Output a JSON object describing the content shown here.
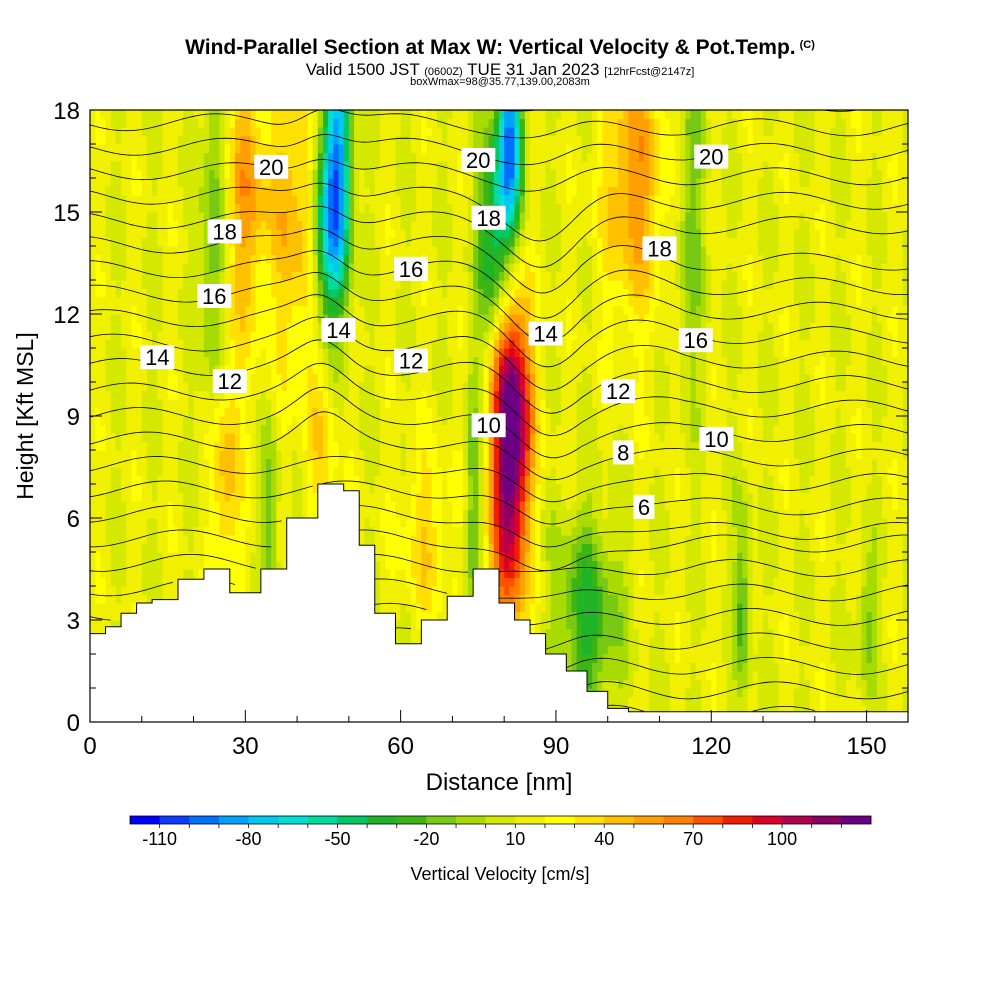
{
  "chart_data": {
    "type": "heatmap",
    "title": "Wind-Parallel Section at Max W: Vertical Velocity & Pot.Temp.",
    "title_mark": "(C)",
    "subtitle_parts": [
      "Valid 1500 JST",
      "(0600Z)",
      "TUE 31 Jan 2023",
      "[12hrFcst@2147z]"
    ],
    "subtitle2": "boxWmax=98@35.77,139.00,2083m",
    "xlabel": "Distance [nm]",
    "ylabel": "Height [Kft MSL]",
    "xlim": [
      0,
      158
    ],
    "ylim": [
      0,
      18
    ],
    "x_ticks": [
      0,
      30,
      60,
      90,
      120,
      150
    ],
    "y_ticks": [
      0,
      3,
      6,
      9,
      12,
      15,
      18
    ],
    "colorbar": {
      "label": "Vertical Velocity [cm/s]",
      "tick_labels": [
        "-110",
        "-80",
        "-50",
        "-20",
        "10",
        "40",
        "70",
        "100"
      ],
      "levels": [
        -110,
        -100,
        -90,
        -80,
        -70,
        -60,
        -50,
        -40,
        -30,
        -20,
        -10,
        0,
        10,
        20,
        30,
        40,
        50,
        60,
        70,
        80,
        90,
        100,
        110,
        120
      ],
      "colors": [
        "#0000ff",
        "#0a3cff",
        "#0070ff",
        "#00a0ff",
        "#00c8f0",
        "#00e0d8",
        "#00dca0",
        "#00c864",
        "#20b428",
        "#3cb414",
        "#78c814",
        "#a8dc00",
        "#d4e800",
        "#f0f000",
        "#ffff00",
        "#ffe000",
        "#ffc000",
        "#ffa000",
        "#ff8000",
        "#ff5000",
        "#f01e00",
        "#dc0028",
        "#b40050",
        "#8c0064",
        "#6c0084"
      ]
    },
    "terrain_profile": {
      "x": [
        0,
        3,
        6,
        9,
        12,
        17,
        22,
        27,
        33,
        38,
        44,
        49,
        52,
        55,
        59,
        64,
        69,
        74,
        79,
        82,
        85,
        88,
        92,
        96,
        100,
        104,
        110,
        120,
        130,
        140,
        150,
        158
      ],
      "height": [
        2.6,
        2.8,
        3.2,
        3.5,
        3.6,
        4.2,
        4.5,
        3.8,
        4.5,
        6.0,
        7.0,
        6.8,
        5.2,
        3.2,
        2.3,
        3.0,
        3.7,
        4.5,
        3.5,
        3.0,
        2.6,
        2.0,
        1.5,
        0.9,
        0.4,
        0.3,
        0.3,
        0.3,
        0.3,
        0.3,
        0.3,
        0.3
      ]
    },
    "vertical_velocity_features": [
      {
        "x": 81,
        "z": 7.2,
        "peak": 98,
        "width_nm": 3.5,
        "depth_kft": 5
      },
      {
        "x": 82,
        "z": 9.5,
        "peak": 50,
        "width_nm": 4,
        "depth_kft": 3
      },
      {
        "x": 26,
        "z": 7.5,
        "peak": 40,
        "width_nm": 3,
        "depth_kft": 4
      },
      {
        "x": 45,
        "z": 9.8,
        "peak": 35,
        "width_nm": 3,
        "depth_kft": 4
      },
      {
        "x": 30,
        "z": 15.5,
        "peak": 40,
        "width_nm": 5,
        "depth_kft": 4
      },
      {
        "x": 40,
        "z": 15.0,
        "peak": 35,
        "width_nm": 5,
        "depth_kft": 5
      },
      {
        "x": 105,
        "z": 16.0,
        "peak": 45,
        "width_nm": 6,
        "depth_kft": 4
      },
      {
        "x": 65,
        "z": 5.5,
        "peak": 25,
        "width_nm": 5,
        "depth_kft": 2.5
      },
      {
        "x": 96,
        "z": 3.0,
        "peak": -45,
        "width_nm": 6,
        "depth_kft": 3
      },
      {
        "x": 48,
        "z": 16.0,
        "peak": -100,
        "width_nm": 2.5,
        "depth_kft": 4
      },
      {
        "x": 45,
        "z": 14.0,
        "peak": -70,
        "width_nm": 2.5,
        "depth_kft": 4
      },
      {
        "x": 81,
        "z": 17.0,
        "peak": -100,
        "width_nm": 2.5,
        "depth_kft": 3
      },
      {
        "x": 78,
        "z": 14.0,
        "peak": -60,
        "width_nm": 3,
        "depth_kft": 3
      },
      {
        "x": 24,
        "z": 14.0,
        "peak": -40,
        "width_nm": 2.5,
        "depth_kft": 6
      },
      {
        "x": 35,
        "z": 6.0,
        "peak": -30,
        "width_nm": 1.5,
        "depth_kft": 3
      },
      {
        "x": 74,
        "z": 6.5,
        "peak": -30,
        "width_nm": 1.5,
        "depth_kft": 4
      },
      {
        "x": 116,
        "z": 15.0,
        "peak": -25,
        "width_nm": 3,
        "depth_kft": 5
      },
      {
        "x": 126,
        "z": 3.5,
        "peak": -35,
        "width_nm": 1.5,
        "depth_kft": 3
      },
      {
        "x": 150,
        "z": 3.0,
        "peak": -25,
        "width_nm": 2,
        "depth_kft": 2
      }
    ],
    "theta_contour_labels": [
      {
        "value": "20",
        "x": 35,
        "y": 16.3
      },
      {
        "value": "20",
        "x": 75,
        "y": 16.5
      },
      {
        "value": "20",
        "x": 120,
        "y": 16.6
      },
      {
        "value": "18",
        "x": 26,
        "y": 14.4
      },
      {
        "value": "18",
        "x": 77,
        "y": 14.8
      },
      {
        "value": "18",
        "x": 110,
        "y": 13.9
      },
      {
        "value": "16",
        "x": 62,
        "y": 13.3
      },
      {
        "value": "16",
        "x": 24,
        "y": 12.5
      },
      {
        "value": "16",
        "x": 117,
        "y": 11.2
      },
      {
        "value": "14",
        "x": 13,
        "y": 10.7
      },
      {
        "value": "14",
        "x": 48,
        "y": 11.5
      },
      {
        "value": "14",
        "x": 88,
        "y": 11.4
      },
      {
        "value": "12",
        "x": 27,
        "y": 10.0
      },
      {
        "value": "12",
        "x": 62,
        "y": 10.6
      },
      {
        "value": "12",
        "x": 102,
        "y": 9.7
      },
      {
        "value": "10",
        "x": 77,
        "y": 8.7
      },
      {
        "value": "10",
        "x": 121,
        "y": 8.3
      },
      {
        "value": "8",
        "x": 103,
        "y": 7.9
      },
      {
        "value": "6",
        "x": 107,
        "y": 6.3
      }
    ]
  }
}
